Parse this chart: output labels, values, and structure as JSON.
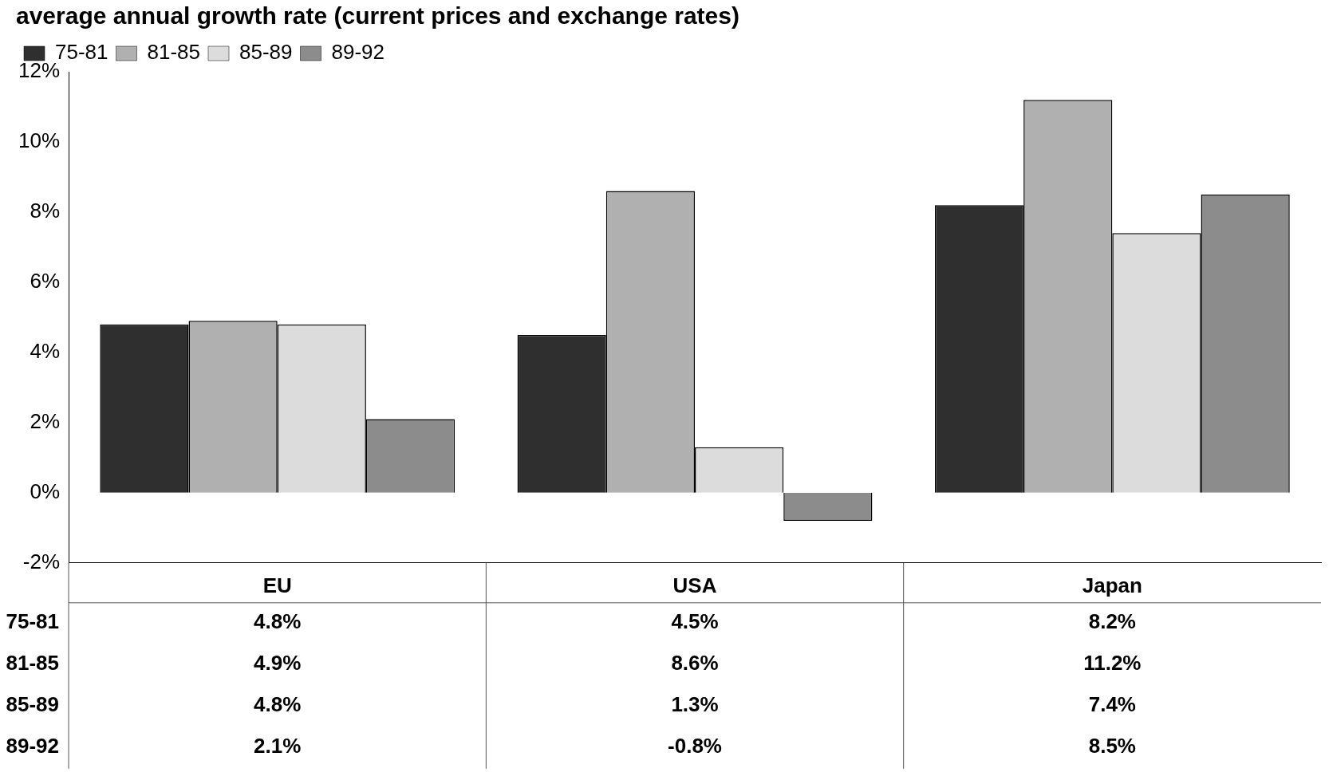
{
  "chart_data": {
    "type": "bar",
    "title": "average annual growth rate (current prices and exchange rates)",
    "categories": [
      "EU",
      "USA",
      "Japan"
    ],
    "series": [
      {
        "name": "75-81",
        "color": "#2f2f2f",
        "values": [
          4.8,
          4.5,
          8.2
        ],
        "value_labels": [
          "4.8%",
          "4.5%",
          "8.2%"
        ]
      },
      {
        "name": "81-85",
        "color": "#b0b0b0",
        "values": [
          4.9,
          8.6,
          11.2
        ],
        "value_labels": [
          "4.9%",
          "8.6%",
          "11.2%"
        ]
      },
      {
        "name": "85-89",
        "color": "#dcdcdc",
        "values": [
          4.8,
          1.3,
          7.4
        ],
        "value_labels": [
          "4.8%",
          "1.3%",
          "7.4%"
        ]
      },
      {
        "name": "89-92",
        "color": "#8c8c8c",
        "values": [
          2.1,
          -0.8,
          8.5
        ],
        "value_labels": [
          "2.1%",
          "-0.8%",
          "8.5%"
        ]
      }
    ],
    "ylim": [
      -2,
      12
    ],
    "yticks": [
      {
        "value": -2,
        "label": "-2%"
      },
      {
        "value": 0,
        "label": "0%"
      },
      {
        "value": 2,
        "label": "2%"
      },
      {
        "value": 4,
        "label": "4%"
      },
      {
        "value": 6,
        "label": "6%"
      },
      {
        "value": 8,
        "label": "8%"
      },
      {
        "value": 10,
        "label": "10%"
      },
      {
        "value": 12,
        "label": "12%"
      }
    ],
    "legend": "top left",
    "grid": false
  }
}
